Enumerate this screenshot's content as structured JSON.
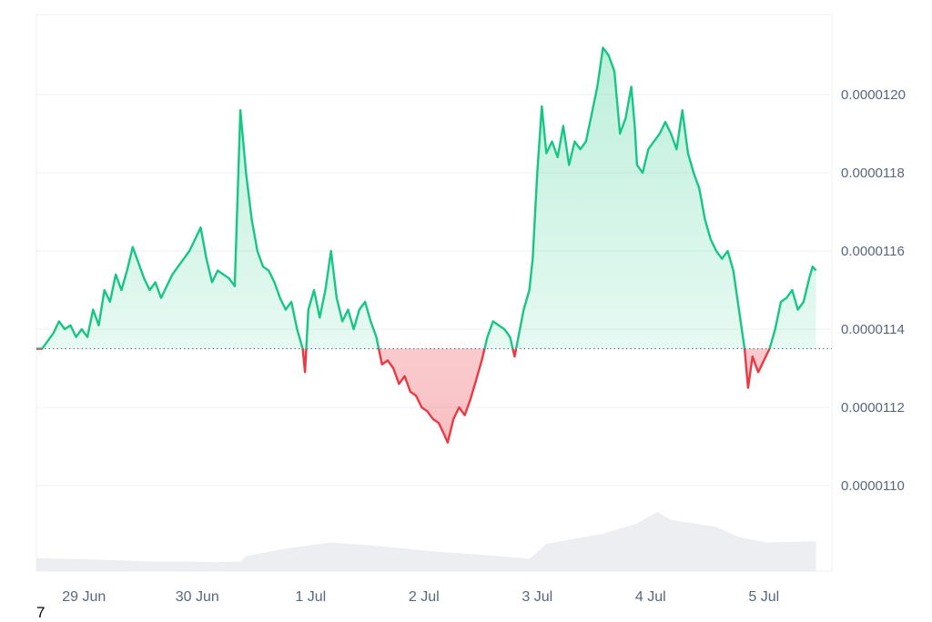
{
  "chart_data": {
    "type": "line",
    "baseline": 1.135e-05,
    "ylim": [
      1.08e-05,
      1.22e-05
    ],
    "y_ticks": [
      {
        "value": 1.2e-05,
        "label": "0.0000120"
      },
      {
        "value": 1.18e-05,
        "label": "0.0000118"
      },
      {
        "value": 1.16e-05,
        "label": "0.0000116"
      },
      {
        "value": 1.14e-05,
        "label": "0.0000114"
      },
      {
        "value": 1.12e-05,
        "label": "0.0000112"
      },
      {
        "value": 1.1e-05,
        "label": "0.0000110"
      }
    ],
    "x_ticks": [
      {
        "day": 0.42,
        "label": "29 Jun"
      },
      {
        "day": 1.42,
        "label": "30 Jun"
      },
      {
        "day": 2.42,
        "label": "1 Jul"
      },
      {
        "day": 3.42,
        "label": "2 Jul"
      },
      {
        "day": 4.42,
        "label": "3 Jul"
      },
      {
        "day": 5.42,
        "label": "4 Jul"
      },
      {
        "day": 6.42,
        "label": "5 Jul"
      }
    ],
    "x_range": [
      0,
      7.02
    ],
    "colors": {
      "up": "#16c784",
      "down": "#ea3943",
      "volume": "#eceef2",
      "grid": "#eef0f3"
    },
    "price_series": [
      [
        0.0,
        1.135e-05
      ],
      [
        0.05,
        1.135e-05
      ],
      [
        0.1,
        1.137e-05
      ],
      [
        0.15,
        1.139e-05
      ],
      [
        0.2,
        1.142e-05
      ],
      [
        0.25,
        1.14e-05
      ],
      [
        0.3,
        1.141e-05
      ],
      [
        0.35,
        1.138e-05
      ],
      [
        0.4,
        1.14e-05
      ],
      [
        0.45,
        1.138e-05
      ],
      [
        0.5,
        1.145e-05
      ],
      [
        0.55,
        1.141e-05
      ],
      [
        0.6,
        1.15e-05
      ],
      [
        0.65,
        1.147e-05
      ],
      [
        0.7,
        1.154e-05
      ],
      [
        0.75,
        1.15e-05
      ],
      [
        0.8,
        1.155e-05
      ],
      [
        0.85,
        1.161e-05
      ],
      [
        0.9,
        1.157e-05
      ],
      [
        0.95,
        1.153e-05
      ],
      [
        1.0,
        1.15e-05
      ],
      [
        1.05,
        1.152e-05
      ],
      [
        1.1,
        1.148e-05
      ],
      [
        1.15,
        1.151e-05
      ],
      [
        1.2,
        1.154e-05
      ],
      [
        1.25,
        1.156e-05
      ],
      [
        1.3,
        1.158e-05
      ],
      [
        1.35,
        1.16e-05
      ],
      [
        1.4,
        1.163e-05
      ],
      [
        1.45,
        1.166e-05
      ],
      [
        1.5,
        1.158e-05
      ],
      [
        1.55,
        1.152e-05
      ],
      [
        1.6,
        1.155e-05
      ],
      [
        1.65,
        1.154e-05
      ],
      [
        1.7,
        1.153e-05
      ],
      [
        1.75,
        1.151e-05
      ],
      [
        1.8,
        1.196e-05
      ],
      [
        1.85,
        1.18e-05
      ],
      [
        1.9,
        1.168e-05
      ],
      [
        1.95,
        1.16e-05
      ],
      [
        2.0,
        1.156e-05
      ],
      [
        2.05,
        1.155e-05
      ],
      [
        2.1,
        1.152e-05
      ],
      [
        2.15,
        1.148e-05
      ],
      [
        2.2,
        1.145e-05
      ],
      [
        2.25,
        1.147e-05
      ],
      [
        2.3,
        1.14e-05
      ],
      [
        2.35,
        1.135e-05
      ],
      [
        2.37,
        1.129e-05
      ],
      [
        2.4,
        1.145e-05
      ],
      [
        2.45,
        1.15e-05
      ],
      [
        2.5,
        1.143e-05
      ],
      [
        2.55,
        1.15e-05
      ],
      [
        2.6,
        1.16e-05
      ],
      [
        2.65,
        1.148e-05
      ],
      [
        2.7,
        1.142e-05
      ],
      [
        2.75,
        1.145e-05
      ],
      [
        2.8,
        1.14e-05
      ],
      [
        2.85,
        1.145e-05
      ],
      [
        2.9,
        1.147e-05
      ],
      [
        2.95,
        1.142e-05
      ],
      [
        3.0,
        1.138e-05
      ],
      [
        3.05,
        1.131e-05
      ],
      [
        3.1,
        1.132e-05
      ],
      [
        3.15,
        1.13e-05
      ],
      [
        3.2,
        1.126e-05
      ],
      [
        3.25,
        1.128e-05
      ],
      [
        3.3,
        1.124e-05
      ],
      [
        3.35,
        1.123e-05
      ],
      [
        3.4,
        1.12e-05
      ],
      [
        3.45,
        1.119e-05
      ],
      [
        3.5,
        1.117e-05
      ],
      [
        3.55,
        1.116e-05
      ],
      [
        3.6,
        1.113e-05
      ],
      [
        3.63,
        1.111e-05
      ],
      [
        3.68,
        1.117e-05
      ],
      [
        3.73,
        1.12e-05
      ],
      [
        3.78,
        1.118e-05
      ],
      [
        3.83,
        1.122e-05
      ],
      [
        3.88,
        1.127e-05
      ],
      [
        3.93,
        1.132e-05
      ],
      [
        3.98,
        1.138e-05
      ],
      [
        4.03,
        1.142e-05
      ],
      [
        4.08,
        1.141e-05
      ],
      [
        4.13,
        1.14e-05
      ],
      [
        4.18,
        1.138e-05
      ],
      [
        4.22,
        1.133e-05
      ],
      [
        4.26,
        1.139e-05
      ],
      [
        4.3,
        1.145e-05
      ],
      [
        4.35,
        1.15e-05
      ],
      [
        4.38,
        1.158e-05
      ],
      [
        4.42,
        1.18e-05
      ],
      [
        4.46,
        1.197e-05
      ],
      [
        4.5,
        1.185e-05
      ],
      [
        4.55,
        1.188e-05
      ],
      [
        4.6,
        1.184e-05
      ],
      [
        4.65,
        1.192e-05
      ],
      [
        4.7,
        1.182e-05
      ],
      [
        4.75,
        1.188e-05
      ],
      [
        4.8,
        1.186e-05
      ],
      [
        4.85,
        1.188e-05
      ],
      [
        4.9,
        1.195e-05
      ],
      [
        4.95,
        1.202e-05
      ],
      [
        5.0,
        1.212e-05
      ],
      [
        5.05,
        1.21e-05
      ],
      [
        5.1,
        1.206e-05
      ],
      [
        5.15,
        1.19e-05
      ],
      [
        5.2,
        1.194e-05
      ],
      [
        5.25,
        1.202e-05
      ],
      [
        5.28,
        1.192e-05
      ],
      [
        5.3,
        1.182e-05
      ],
      [
        5.35,
        1.18e-05
      ],
      [
        5.4,
        1.186e-05
      ],
      [
        5.45,
        1.188e-05
      ],
      [
        5.5,
        1.19e-05
      ],
      [
        5.55,
        1.193e-05
      ],
      [
        5.6,
        1.19e-05
      ],
      [
        5.65,
        1.186e-05
      ],
      [
        5.7,
        1.196e-05
      ],
      [
        5.75,
        1.185e-05
      ],
      [
        5.8,
        1.18e-05
      ],
      [
        5.85,
        1.176e-05
      ],
      [
        5.9,
        1.168e-05
      ],
      [
        5.95,
        1.163e-05
      ],
      [
        6.0,
        1.16e-05
      ],
      [
        6.05,
        1.158e-05
      ],
      [
        6.1,
        1.16e-05
      ],
      [
        6.15,
        1.155e-05
      ],
      [
        6.2,
        1.145e-05
      ],
      [
        6.25,
        1.135e-05
      ],
      [
        6.28,
        1.125e-05
      ],
      [
        6.32,
        1.133e-05
      ],
      [
        6.37,
        1.129e-05
      ],
      [
        6.42,
        1.132e-05
      ],
      [
        6.47,
        1.135e-05
      ],
      [
        6.52,
        1.14e-05
      ],
      [
        6.57,
        1.147e-05
      ],
      [
        6.62,
        1.148e-05
      ],
      [
        6.67,
        1.15e-05
      ],
      [
        6.72,
        1.145e-05
      ],
      [
        6.77,
        1.147e-05
      ],
      [
        6.82,
        1.153e-05
      ],
      [
        6.85,
        1.156e-05
      ],
      [
        6.88,
        1.155e-05
      ]
    ],
    "volume_series": [
      [
        0.0,
        0.19
      ],
      [
        0.5,
        0.17
      ],
      [
        1.0,
        0.14
      ],
      [
        1.35,
        0.14
      ],
      [
        1.55,
        0.13
      ],
      [
        1.8,
        0.14
      ],
      [
        1.85,
        0.22
      ],
      [
        2.2,
        0.33
      ],
      [
        2.6,
        0.42
      ],
      [
        3.0,
        0.37
      ],
      [
        3.5,
        0.29
      ],
      [
        4.0,
        0.23
      ],
      [
        4.35,
        0.18
      ],
      [
        4.5,
        0.4
      ],
      [
        5.0,
        0.55
      ],
      [
        5.3,
        0.7
      ],
      [
        5.48,
        0.87
      ],
      [
        5.6,
        0.75
      ],
      [
        6.0,
        0.65
      ],
      [
        6.2,
        0.5
      ],
      [
        6.45,
        0.42
      ],
      [
        6.88,
        0.44
      ]
    ]
  },
  "footnote": "7"
}
